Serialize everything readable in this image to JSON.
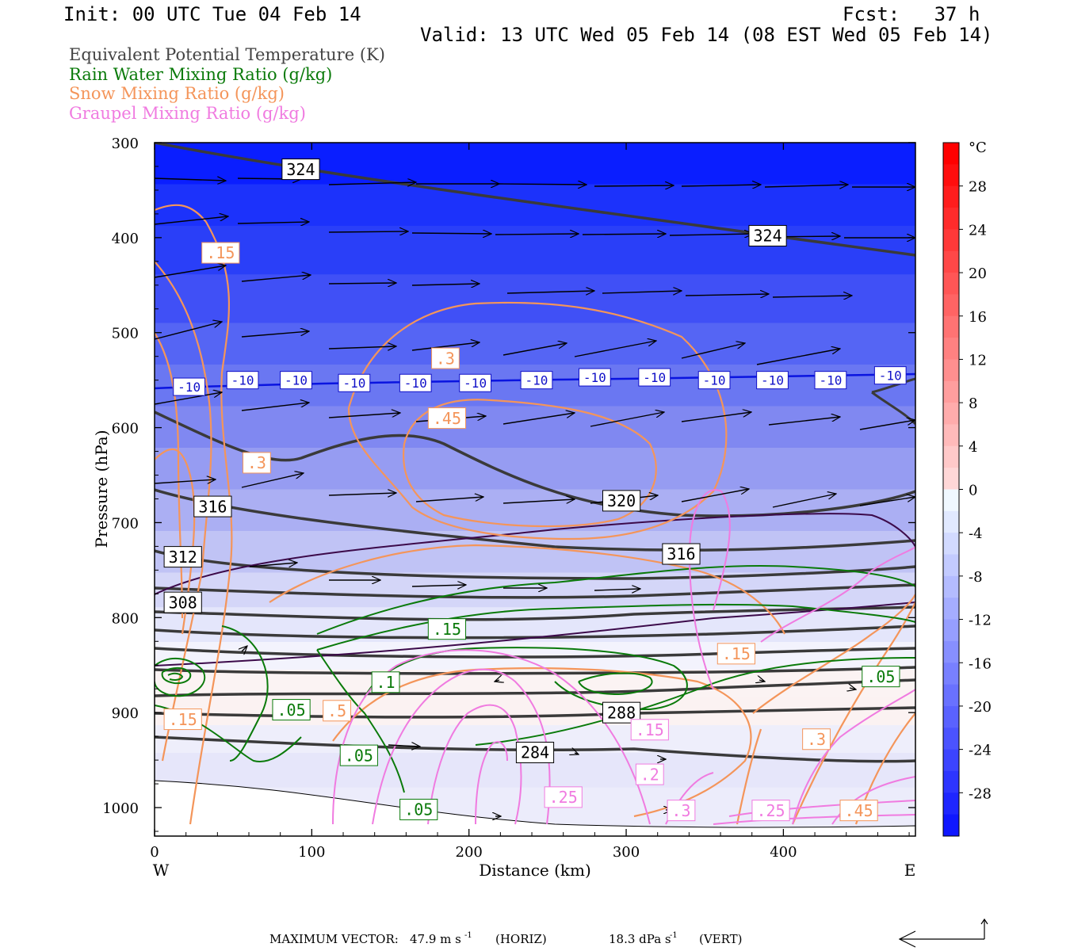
{
  "header": {
    "init": "Init: 00 UTC Tue 04 Feb 14",
    "fcst": "Fcst:   37 h",
    "valid": "Valid: 13 UTC Wed 05 Feb 14 (08 EST Wed 05 Feb 14)"
  },
  "legend": [
    {
      "text": "Equivalent Potential Temperature (K)",
      "color": "#444444"
    },
    {
      "text": "Rain Water Mixing Ratio (g/kg)",
      "color": "#0a7a0a"
    },
    {
      "text": "Snow Mixing Ratio (g/kg)",
      "color": "#f4955a"
    },
    {
      "text": "Graupel Mixing Ratio (g/kg)",
      "color": "#f07be0"
    }
  ],
  "footer": {
    "max_vector_label": "MAXIMUM VECTOR:",
    "horiz": "47.9 m s",
    "horiz_exp": "-1",
    "horiz_unit": "(HORIZ)",
    "vert": "18.3 dPa s",
    "vert_exp": "-1",
    "vert_unit": "(VERT)"
  },
  "chart_data": {
    "type": "cross-section",
    "xlabel": "Distance (km)",
    "ylabel": "Pressure (hPa)",
    "xlim": [
      0,
      484
    ],
    "ylim": [
      1030,
      300
    ],
    "x_ticks": [
      0,
      100,
      200,
      300,
      400
    ],
    "y_ticks": [
      300,
      400,
      500,
      600,
      700,
      800,
      900,
      1000
    ],
    "x_end_labels": {
      "left": "W",
      "right": "E"
    },
    "colorbar": {
      "unit": "°C",
      "ticks": [
        28,
        24,
        20,
        16,
        12,
        8,
        4,
        0,
        -4,
        -8,
        -12,
        -16,
        -20,
        -24,
        -28
      ],
      "range": [
        -32,
        32
      ]
    },
    "theta_e_contour_labels": [
      {
        "text": "324",
        "x": 93,
        "p": 328
      },
      {
        "text": "324",
        "x": 390,
        "p": 398
      },
      {
        "text": "320",
        "x": 297,
        "p": 677
      },
      {
        "text": "316",
        "x": 37,
        "p": 683
      },
      {
        "text": "316",
        "x": 335,
        "p": 733
      },
      {
        "text": "312",
        "x": 18,
        "p": 736
      },
      {
        "text": "308",
        "x": 18,
        "p": 784
      },
      {
        "text": "288",
        "x": 297,
        "p": 900
      },
      {
        "text": "284",
        "x": 242,
        "p": 942
      }
    ],
    "isotherm_labels": [
      {
        "text": "-10",
        "x": 22,
        "p": 557
      },
      {
        "text": "-10",
        "x": 56,
        "p": 550
      },
      {
        "text": "-10",
        "x": 90,
        "p": 550
      },
      {
        "text": "-10",
        "x": 127,
        "p": 553
      },
      {
        "text": "-10",
        "x": 166,
        "p": 553
      },
      {
        "text": "-10",
        "x": 204,
        "p": 553
      },
      {
        "text": "-10",
        "x": 243,
        "p": 550
      },
      {
        "text": "-10",
        "x": 280,
        "p": 547
      },
      {
        "text": "-10",
        "x": 318,
        "p": 547
      },
      {
        "text": "-10",
        "x": 356,
        "p": 550
      },
      {
        "text": "-10",
        "x": 393,
        "p": 550
      },
      {
        "text": "-10",
        "x": 430,
        "p": 550
      },
      {
        "text": "-10",
        "x": 468,
        "p": 545
      }
    ],
    "rain_labels": [
      {
        "text": ".15",
        "x": 186,
        "p": 812
      },
      {
        "text": ".1",
        "x": 147,
        "p": 868
      },
      {
        "text": ".05",
        "x": 87,
        "p": 897
      },
      {
        "text": ".05",
        "x": 130,
        "p": 945
      },
      {
        "text": ".05",
        "x": 168,
        "p": 1002
      },
      {
        "text": ".05",
        "x": 462,
        "p": 862
      }
    ],
    "snow_labels": [
      {
        "text": ".15",
        "x": 42,
        "p": 416
      },
      {
        "text": ".3",
        "x": 185,
        "p": 527
      },
      {
        "text": ".45",
        "x": 186,
        "p": 590
      },
      {
        "text": ".3",
        "x": 65,
        "p": 637
      },
      {
        "text": ".5",
        "x": 116,
        "p": 898
      },
      {
        "text": ".15",
        "x": 18,
        "p": 907
      },
      {
        "text": ".15",
        "x": 370,
        "p": 838
      },
      {
        "text": ".3",
        "x": 421,
        "p": 928
      },
      {
        "text": ".45",
        "x": 448,
        "p": 1003
      }
    ],
    "graupel_labels": [
      {
        "text": ".15",
        "x": 315,
        "p": 918
      },
      {
        "text": ".2",
        "x": 315,
        "p": 965
      },
      {
        "text": ".25",
        "x": 260,
        "p": 989
      },
      {
        "text": ".3",
        "x": 335,
        "p": 1003
      },
      {
        "text": ".25",
        "x": 392,
        "p": 1003
      }
    ]
  }
}
